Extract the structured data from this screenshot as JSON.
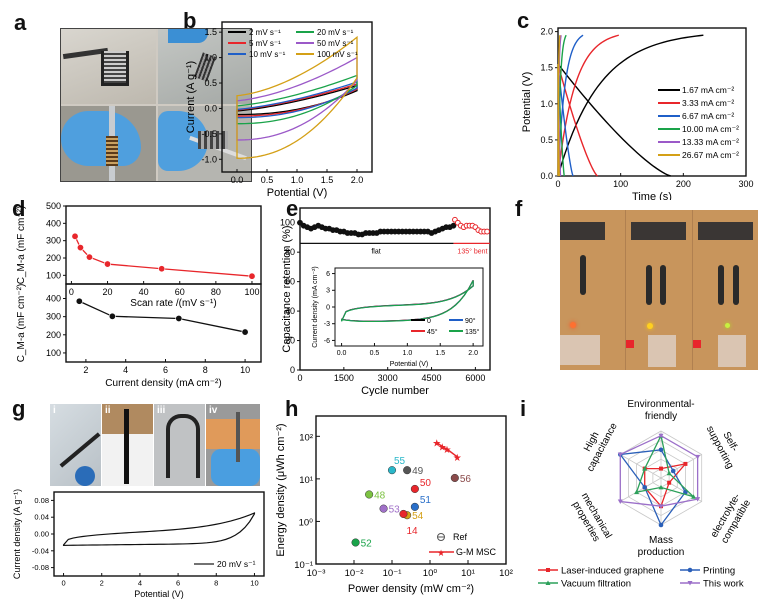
{
  "panel_letters": {
    "a": "a",
    "b": "b",
    "c": "c",
    "d": "d",
    "e": "e",
    "f": "f",
    "g": "g",
    "h": "h",
    "i": "i"
  },
  "photo_g_labels": [
    "i",
    "ii",
    "iii",
    "iv"
  ],
  "chart_data": [
    {
      "id": "b",
      "type": "line",
      "title": "",
      "xlabel": "Potential (V)",
      "ylabel": "Current (A g⁻¹)",
      "xlim": [
        -0.25,
        2.25
      ],
      "ylim": [
        -1.25,
        1.7
      ],
      "xticks": [
        "0.0",
        "0.5",
        "1.0",
        "1.5",
        "2.0"
      ],
      "xtick_values": [
        0,
        0.5,
        1.0,
        1.5,
        2.0
      ],
      "yticks": [
        "-1.0",
        "-0.5",
        "0.0",
        "0.5",
        "1.0",
        "1.5"
      ],
      "ytick_values": [
        -1.0,
        -0.5,
        0.0,
        0.5,
        1.0,
        1.5
      ],
      "legend": "top",
      "series": [
        {
          "name": "2 mV s⁻¹",
          "color": "#000000",
          "upper_start": -0.05,
          "upper_end": 0.45,
          "lower_start": -0.12,
          "lower_end": 0.35
        },
        {
          "name": "5 mV s⁻¹",
          "color": "#e8262b",
          "upper_start": -0.03,
          "upper_end": 0.48,
          "lower_start": -0.15,
          "lower_end": 0.38
        },
        {
          "name": "10 mV s⁻¹",
          "color": "#1f5fc8",
          "upper_start": -0.02,
          "upper_end": 0.52,
          "lower_start": -0.18,
          "lower_end": 0.4
        },
        {
          "name": "20 mV s⁻¹",
          "color": "#1aa34a",
          "upper_start": 0.05,
          "upper_end": 0.65,
          "lower_start": -0.3,
          "lower_end": 0.45
        },
        {
          "name": "50 mV s⁻¹",
          "color": "#9b59c8",
          "upper_start": 0.15,
          "upper_end": 1.0,
          "lower_start": -0.62,
          "lower_end": 0.55
        },
        {
          "name": "100 mV s⁻¹",
          "color": "#d4a017",
          "upper_start": 0.25,
          "upper_end": 1.4,
          "lower_start": -0.98,
          "lower_end": 0.6
        }
      ]
    },
    {
      "id": "c",
      "type": "line",
      "xlabel": "Time (s)",
      "ylabel": "Potential (V)",
      "xlim": [
        0,
        300
      ],
      "ylim": [
        0,
        2.05
      ],
      "xticks": [
        "0",
        "100",
        "200",
        "300"
      ],
      "xtick_values": [
        0,
        100,
        200,
        300
      ],
      "yticks": [
        "0.0",
        "0.5",
        "1.0",
        "1.5",
        "2.0"
      ],
      "ytick_values": [
        0,
        0.5,
        1.0,
        1.5,
        2.0
      ],
      "legend": "right",
      "series": [
        {
          "name": "1.67 mA cm⁻²",
          "color": "#000000",
          "charge_end": 232,
          "discharge_end": 180
        },
        {
          "name": "3.33 mA cm⁻²",
          "color": "#e8262b",
          "charge_end": 97,
          "discharge_end": 63
        },
        {
          "name": "6.67 mA cm⁻²",
          "color": "#1f5fc8",
          "charge_end": 40,
          "discharge_end": 24
        },
        {
          "name": "10.00 mA cm⁻²",
          "color": "#1aa34a",
          "charge_end": 13,
          "discharge_end": 10
        },
        {
          "name": "13.33 mA cm⁻²",
          "color": "#9b59c8",
          "charge_end": 5,
          "discharge_end": 4
        },
        {
          "name": "26.67 mA cm⁻²",
          "color": "#d4a017",
          "charge_end": 3,
          "discharge_end": 2
        }
      ]
    },
    {
      "id": "d-top",
      "type": "line",
      "xlabel": "Scan rate /(mV s⁻¹)",
      "ylabel": "C_M-a (mF cm⁻²)",
      "xlim": [
        -3,
        105
      ],
      "ylim": [
        50,
        500
      ],
      "xticks": [
        "0",
        "20",
        "40",
        "60",
        "80",
        "100"
      ],
      "xtick_values": [
        0,
        20,
        40,
        60,
        80,
        100
      ],
      "yticks": [
        "100",
        "200",
        "300",
        "400",
        "500"
      ],
      "ytick_values": [
        100,
        200,
        300,
        400,
        500
      ],
      "series": [
        {
          "name": "scan rate",
          "color": "#e8262b",
          "x": [
            2,
            5,
            10,
            20,
            50,
            100
          ],
          "y": [
            325,
            260,
            205,
            165,
            138,
            95
          ]
        }
      ]
    },
    {
      "id": "d-bottom",
      "type": "line",
      "xlabel": "Current density (mA cm⁻²)",
      "ylabel": "C_M-a (mF cm⁻²)",
      "xlim": [
        1,
        10.8
      ],
      "ylim": [
        50,
        480
      ],
      "xticks": [
        "2",
        "4",
        "6",
        "8",
        "10"
      ],
      "xtick_values": [
        2,
        4,
        6,
        8,
        10
      ],
      "yticks": [
        "100",
        "200",
        "300",
        "400"
      ],
      "ytick_values": [
        100,
        200,
        300,
        400
      ],
      "series": [
        {
          "name": "current density",
          "color": "#111111",
          "x": [
            1.67,
            3.33,
            6.67,
            10
          ],
          "y": [
            385,
            302,
            290,
            215
          ]
        }
      ]
    },
    {
      "id": "e",
      "type": "scatter",
      "xlabel": "Cycle number",
      "ylabel": "Capacitance retention (%)",
      "xlim": [
        0,
        6500
      ],
      "ylim": [
        0,
        110
      ],
      "xticks": [
        "0",
        "1500",
        "3000",
        "4500",
        "6000"
      ],
      "xtick_values": [
        0,
        1500,
        3000,
        4500,
        6000
      ],
      "yticks": [
        "0",
        "20",
        "40",
        "60",
        "80",
        "100"
      ],
      "ytick_values": [
        0,
        20,
        40,
        60,
        80,
        100
      ],
      "annotations": [
        "flat",
        "135° bent"
      ],
      "series": [
        {
          "name": "flat",
          "color": "#111111",
          "x": [
            0,
            125,
            250,
            375,
            500,
            625,
            750,
            875,
            1000,
            1125,
            1250,
            1375,
            1500,
            1625,
            1750,
            1875,
            2000,
            2125,
            2250,
            2375,
            2500,
            2625,
            2750,
            2875,
            3000,
            3125,
            3250,
            3375,
            3500,
            3625,
            3750,
            3875,
            4000,
            4125,
            4250,
            4375,
            4500,
            4625,
            4750,
            4875,
            5000,
            5125,
            5250
          ],
          "y": [
            100,
            98,
            97,
            96,
            97,
            98,
            97,
            96,
            96,
            95,
            95,
            94,
            94,
            93,
            93,
            93,
            92,
            92,
            93,
            93,
            93,
            93,
            94,
            94,
            94,
            94,
            94,
            94,
            94,
            94,
            94,
            94,
            94,
            94,
            94,
            94,
            93,
            94,
            95,
            96,
            97,
            97,
            98
          ]
        },
        {
          "name": "135° bent",
          "color": "#e8262b",
          "x": [
            5300,
            5400,
            5500,
            5600,
            5700,
            5800,
            5900,
            6000,
            6100,
            6200,
            6300,
            6400
          ],
          "y": [
            102,
            100,
            98,
            97,
            98,
            98,
            98,
            97,
            95,
            94,
            94,
            94
          ]
        }
      ],
      "inset": {
        "xlabel": "Potential (V)",
        "ylabel": "Current density (mA cm⁻²)",
        "xlim": [
          -0.1,
          2.15
        ],
        "ylim": [
          -7,
          7
        ],
        "xticks": [
          "0.0",
          "0.5",
          "1.0",
          "1.5",
          "2.0"
        ],
        "xtick_values": [
          0,
          0.5,
          1.0,
          1.5,
          2.0
        ],
        "yticks": [
          "-6",
          "-3",
          "0",
          "3",
          "6"
        ],
        "ytick_values": [
          -6,
          -3,
          0,
          3,
          6
        ],
        "series": [
          {
            "name": "0",
            "color": "#000000"
          },
          {
            "name": "45°",
            "color": "#e8262b"
          },
          {
            "name": "90°",
            "color": "#1f5fc8"
          },
          {
            "name": "135°",
            "color": "#1aa34a"
          }
        ]
      }
    },
    {
      "id": "g",
      "type": "line",
      "xlabel": "Potential (V)",
      "ylabel": "Current density (A g⁻¹)",
      "xlim": [
        -0.5,
        10.5
      ],
      "ylim": [
        -0.1,
        0.1
      ],
      "xticks": [
        "0",
        "2",
        "4",
        "6",
        "8",
        "10"
      ],
      "xtick_values": [
        0,
        2,
        4,
        6,
        8,
        10
      ],
      "yticks": [
        "-0.08",
        "-0.04",
        "0.00",
        "0.04",
        "0.08"
      ],
      "ytick_values": [
        -0.08,
        -0.04,
        0,
        0.04,
        0.08
      ],
      "series": [
        {
          "name": "20 mV s⁻¹",
          "color": "#111111"
        }
      ]
    },
    {
      "id": "h",
      "type": "scatter",
      "xlabel": "Power density (mW cm⁻²)",
      "ylabel": "Energy density (μWh cm⁻²)",
      "xscale": "log",
      "yscale": "log",
      "xlim": [
        0.001,
        100
      ],
      "ylim": [
        0.1,
        300
      ],
      "xticks": [
        "10⁻³",
        "10⁻²",
        "10⁻¹",
        "10⁰",
        "10¹",
        "10²"
      ],
      "xtick_exps": [
        -3,
        -2,
        -1,
        0,
        1,
        2
      ],
      "yticks": [
        "10⁻¹",
        "10⁰",
        "10¹",
        "10²"
      ],
      "ytick_exps": [
        -1,
        0,
        1,
        2
      ],
      "legend": [
        "Ref",
        "G-M MSC"
      ],
      "ref_points": [
        {
          "label": "55",
          "x": 0.1,
          "y": 16,
          "color": "#2ab7c9"
        },
        {
          "label": "49",
          "x": 0.25,
          "y": 16,
          "color": "#555555"
        },
        {
          "label": "50",
          "x": 0.4,
          "y": 5.8,
          "color": "#e8262b"
        },
        {
          "label": "48",
          "x": 0.025,
          "y": 4.3,
          "color": "#7cc242"
        },
        {
          "label": "51",
          "x": 0.4,
          "y": 2.2,
          "color": "#2a6fc9"
        },
        {
          "label": "53",
          "x": 0.06,
          "y": 2.0,
          "color": "#a070c8"
        },
        {
          "label": "54",
          "x": 0.25,
          "y": 1.4,
          "color": "#d4a017"
        },
        {
          "label": "14",
          "x": 0.2,
          "y": 1.5,
          "color": "#e8262b"
        },
        {
          "label": "56",
          "x": 4.5,
          "y": 10.5,
          "color": "#8b4b4b"
        },
        {
          "label": "52",
          "x": 0.011,
          "y": 0.32,
          "color": "#1aa34a"
        }
      ],
      "gm_msc": {
        "color": "#e8262b",
        "x": [
          1.5,
          2.1,
          2.8,
          5.2
        ],
        "y": [
          72,
          57,
          50,
          33
        ]
      }
    },
    {
      "id": "i",
      "type": "radar",
      "axes": [
        "Environmental-friendly",
        "Self-supporting",
        "electrolyte-compatible",
        "Mass production",
        "mechanical properties",
        "High capacitance"
      ],
      "axis_label_lines": [
        [
          "Environmental-",
          "friendly"
        ],
        [
          "Self-",
          "supporting"
        ],
        [
          "electrolyte-",
          "compatible"
        ],
        [
          "Mass",
          "production"
        ],
        [
          "mechanical",
          "properties"
        ],
        [
          "High",
          "capacitance"
        ]
      ],
      "rmax": 5,
      "series": [
        {
          "name": "Laser-induced graphene",
          "color": "#e8262b",
          "marker": "square",
          "values": [
            1,
            3,
            1,
            3,
            2,
            2
          ]
        },
        {
          "name": "Printing",
          "color": "#2a5fb8",
          "marker": "circle",
          "values": [
            3,
            1.5,
            3,
            5,
            2,
            5
          ]
        },
        {
          "name": "Vacuum  filtration",
          "color": "#2ca05a",
          "marker": "triangle",
          "values": [
            4.5,
            1,
            4,
            1,
            3,
            2
          ]
        },
        {
          "name": "This work",
          "color": "#9b6fc9",
          "marker": "triangle-down",
          "values": [
            4.5,
            4.5,
            4.5,
            3,
            5,
            5
          ]
        }
      ]
    }
  ]
}
